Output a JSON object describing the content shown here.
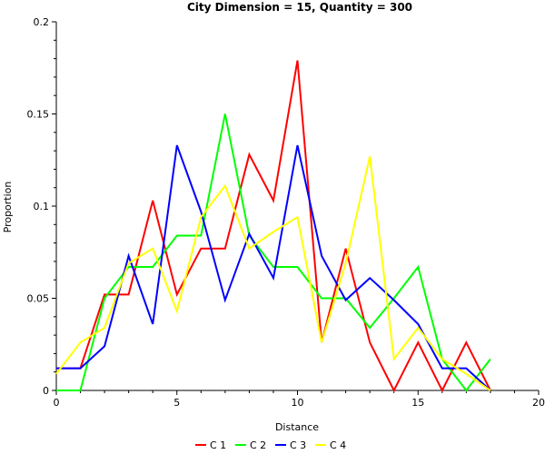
{
  "chart_data": {
    "type": "line",
    "title": "City Dimension = 15, Quantity = 300",
    "xlabel": "Distance",
    "ylabel": "Proportion",
    "xlim": [
      0,
      20
    ],
    "ylim": [
      0,
      0.2
    ],
    "xticks": [
      "0",
      "5",
      "10",
      "15",
      "20"
    ],
    "yticks": [
      "0",
      "0.05",
      "0.1",
      "0.15",
      "0.2"
    ],
    "grid": false,
    "legend_position": "bottom",
    "x": [
      0,
      1,
      2,
      3,
      4,
      5,
      6,
      7,
      8,
      9,
      10,
      11,
      12,
      13,
      14,
      15,
      16,
      17,
      18
    ],
    "series": [
      {
        "name": "C 1",
        "color": "#ff0000",
        "values": [
          0.012,
          0.012,
          0.052,
          0.052,
          0.103,
          0.052,
          0.077,
          0.077,
          0.128,
          0.103,
          0.179,
          0.026,
          0.077,
          0.026,
          0.0,
          0.026,
          0.0,
          0.026,
          0.0
        ]
      },
      {
        "name": "C 2",
        "color": "#00ff00",
        "values": [
          0.0,
          0.0,
          0.05,
          0.067,
          0.067,
          0.084,
          0.084,
          0.15,
          0.084,
          0.067,
          0.067,
          0.05,
          0.05,
          0.034,
          0.05,
          0.067,
          0.017,
          0.0,
          0.017
        ]
      },
      {
        "name": "C 3",
        "color": "#0000ff",
        "values": [
          0.012,
          0.012,
          0.024,
          0.073,
          0.036,
          0.133,
          0.097,
          0.049,
          0.085,
          0.061,
          0.133,
          0.073,
          0.049,
          0.061,
          0.049,
          0.036,
          0.012,
          0.012,
          0.0
        ]
      },
      {
        "name": "C 4",
        "color": "#ffff00",
        "values": [
          0.009,
          0.026,
          0.034,
          0.069,
          0.077,
          0.043,
          0.094,
          0.111,
          0.077,
          0.086,
          0.094,
          0.026,
          0.069,
          0.127,
          0.017,
          0.034,
          0.017,
          0.009,
          0.0
        ]
      }
    ]
  }
}
